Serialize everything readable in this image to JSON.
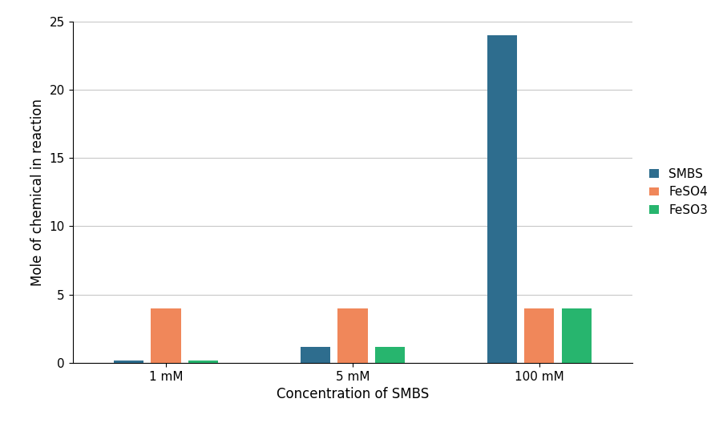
{
  "chart_data": {
    "type": "bar",
    "categories": [
      "1 mM",
      "5 mM",
      "100 mM"
    ],
    "series": [
      {
        "name": "SMBS",
        "color": "#2e6d8e",
        "values": [
          0.2,
          1.2,
          24
        ]
      },
      {
        "name": "FeSO4",
        "color": "#f0875a",
        "values": [
          4,
          4,
          4
        ]
      },
      {
        "name": "FeSO3",
        "color": "#27b56e",
        "values": [
          0.2,
          1.2,
          4
        ]
      }
    ],
    "x_label": "Concentration of SMBS",
    "y_label": "Mole of chemical in reaction",
    "ylim": [
      0,
      25
    ],
    "yticks": [
      0,
      5,
      10,
      15,
      20,
      25
    ],
    "grid": true,
    "legend": "right"
  }
}
